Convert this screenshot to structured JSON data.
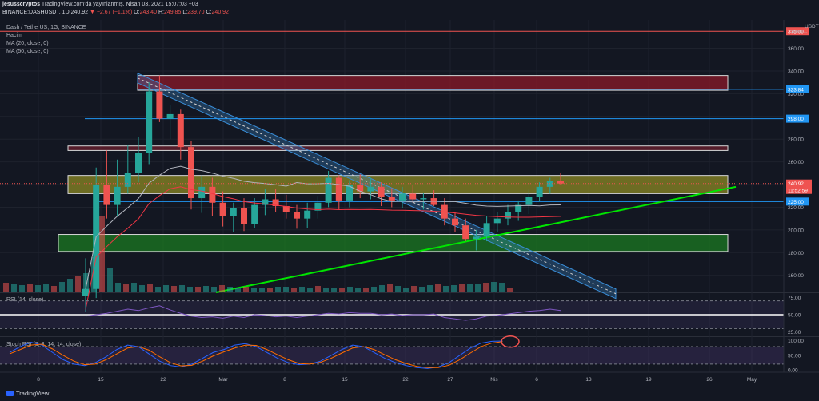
{
  "header": {
    "user": "jesusscryptos",
    "publish_text": "TradingView.com'da yayınlanmış, Nisan 03, 2021 15:07:03 +03",
    "symbol": "BINANCE:DASHUSDT, 1D",
    "last": "240.92",
    "change": "▼ −2.67 (−1.1%)",
    "ohlc": {
      "o_label": "O:",
      "o": "243.40",
      "h_label": "H:",
      "h": "249.85",
      "l_label": "L:",
      "l": "239.70",
      "c_label": "C:",
      "c": "240.92"
    },
    "volume_label": "Hacim"
  },
  "chart_data": [
    {
      "type": "line",
      "title": "Dash / TetherUS, 1G, BINANCE",
      "currency": "USDT",
      "price_scale_note": "Sabitle...",
      "indicators": [
        "MA (20, close, 0)",
        "MA (50, close, 0)"
      ],
      "y_ticks": [
        "360.00",
        "340.00",
        "320.00",
        "300.00",
        "280.00",
        "260.00",
        "240.00",
        "220.00",
        "200.00",
        "180.00",
        "160.00"
      ],
      "ylim": [
        145,
        385
      ],
      "x_ticks": [
        "8",
        "15",
        "22",
        "Mar",
        "8",
        "15",
        "22",
        "27",
        "Nis",
        "6",
        "13",
        "19",
        "26",
        "May"
      ],
      "candles": [
        [
          142,
          175,
          128,
          148
        ],
        [
          148,
          255,
          140,
          240
        ],
        [
          240,
          270,
          210,
          222
        ],
        [
          222,
          262,
          212,
          238
        ],
        [
          238,
          275,
          232,
          250
        ],
        [
          250,
          282,
          242,
          268
        ],
        [
          268,
          330,
          258,
          322
        ],
        [
          322,
          336,
          295,
          298
        ],
        [
          298,
          310,
          280,
          302
        ],
        [
          302,
          306,
          262,
          273
        ],
        [
          273,
          278,
          218,
          228
        ],
        [
          228,
          248,
          215,
          238
        ],
        [
          238,
          246,
          212,
          224
        ],
        [
          224,
          234,
          203,
          212
        ],
        [
          212,
          224,
          198,
          219
        ],
        [
          219,
          228,
          199,
          205
        ],
        [
          205,
          228,
          202,
          222
        ],
        [
          222,
          236,
          213,
          227
        ],
        [
          227,
          236,
          216,
          221
        ],
        [
          221,
          231,
          210,
          216
        ],
        [
          216,
          222,
          201,
          210
        ],
        [
          210,
          224,
          202,
          217
        ],
        [
          217,
          230,
          210,
          224
        ],
        [
          224,
          252,
          220,
          246
        ],
        [
          246,
          248,
          218,
          226
        ],
        [
          226,
          244,
          220,
          240
        ],
        [
          240,
          249,
          228,
          234
        ],
        [
          234,
          246,
          227,
          238
        ],
        [
          238,
          242,
          221,
          229
        ],
        [
          229,
          237,
          220,
          226
        ],
        [
          226,
          238,
          219,
          232
        ],
        [
          232,
          240,
          224,
          227
        ],
        [
          227,
          233,
          218,
          228
        ],
        [
          228,
          235,
          221,
          222
        ],
        [
          222,
          228,
          204,
          210
        ],
        [
          210,
          216,
          198,
          204
        ],
        [
          204,
          210,
          190,
          192
        ],
        [
          192,
          200,
          182,
          194
        ],
        [
          194,
          212,
          190,
          206
        ],
        [
          206,
          216,
          198,
          210
        ],
        [
          210,
          222,
          204,
          216
        ],
        [
          216,
          226,
          208,
          222
        ],
        [
          222,
          236,
          214,
          229
        ],
        [
          229,
          242,
          225,
          238
        ],
        [
          238,
          246,
          232,
          243
        ],
        [
          243.4,
          249.85,
          239.7,
          240.92
        ]
      ],
      "volume": [
        12,
        10,
        9,
        11,
        9,
        10,
        8,
        13,
        17,
        21,
        24,
        44,
        95,
        30,
        12,
        11,
        12,
        9,
        11,
        7,
        9,
        8,
        9,
        7,
        7,
        8,
        7,
        9,
        7,
        6,
        7,
        6,
        5,
        6,
        7,
        7,
        6,
        7,
        6,
        8,
        6,
        5,
        6,
        7,
        5,
        6,
        7,
        9,
        11,
        8,
        6,
        8,
        7,
        9,
        10,
        8,
        9,
        10,
        11,
        10,
        12,
        13,
        12,
        5
      ],
      "levels": [
        {
          "price": "375.00",
          "color": "#ef5350"
        },
        {
          "price": "323.84",
          "color": "#2196f3"
        },
        {
          "price": "298.00",
          "color": "#2196f3"
        },
        {
          "price": "225.00",
          "color": "#2196f3"
        }
      ],
      "last_price_label": "240.92",
      "countdown": "11:52:59",
      "zones": [
        {
          "name": "resistance-top",
          "from": 323,
          "to": 336,
          "color": "#8b1a2a"
        },
        {
          "name": "resistance-mid",
          "from": 270,
          "to": 274,
          "color": "#6b1f2e"
        },
        {
          "name": "current-zone",
          "from": 232,
          "to": 248,
          "color": "#8c8a24"
        },
        {
          "name": "support-zone",
          "from": 181,
          "to": 196,
          "color": "#1b7a21"
        }
      ]
    },
    {
      "type": "line",
      "title": "RSI (14, close)",
      "y_ticks": [
        "75.00",
        "50.00",
        "25.00"
      ],
      "ylim": [
        20,
        80
      ],
      "values": [
        48,
        50,
        52,
        55,
        58,
        56,
        60,
        63,
        57,
        52,
        48,
        46,
        47,
        45,
        48,
        46,
        50,
        49,
        47,
        48,
        46,
        48,
        50,
        52,
        51,
        53,
        52,
        52,
        50,
        51,
        49,
        50,
        50,
        51,
        46,
        44,
        42,
        44,
        48,
        49,
        51,
        53,
        55,
        56,
        58,
        56
      ]
    },
    {
      "type": "line",
      "title": "Stoch RSI (3, 3, 14, 14, close)",
      "y_ticks": [
        "100.00",
        "50.00",
        "0.00"
      ],
      "ylim": [
        -5,
        110
      ],
      "series": [
        {
          "values": [
            60,
            80,
            95,
            85,
            60,
            35,
            20,
            15,
            25,
            45,
            70,
            85,
            80,
            55,
            30,
            15,
            10,
            20,
            40,
            60,
            70,
            85,
            90,
            80,
            60,
            40,
            25,
            18,
            20,
            30,
            50,
            70,
            85,
            80,
            60,
            40,
            25,
            15,
            8,
            5,
            10,
            25,
            50,
            75,
            92,
            98,
            99
          ]
        },
        {
          "values": [
            55,
            70,
            85,
            88,
            72,
            50,
            30,
            18,
            20,
            35,
            55,
            75,
            80,
            68,
            45,
            25,
            14,
            16,
            30,
            48,
            62,
            75,
            85,
            84,
            70,
            52,
            35,
            22,
            20,
            26,
            40,
            58,
            75,
            80,
            70,
            52,
            35,
            22,
            12,
            8,
            8,
            16,
            35,
            58,
            80,
            92,
            97
          ]
        }
      ]
    }
  ],
  "footer": {
    "brand": "TradingView"
  },
  "colors": {
    "up": "#26a69a",
    "down": "#ef5350",
    "ma20": "#b2b5be",
    "ma50": "#f23645",
    "trend": "#00e600",
    "channel": "#3a8ed8"
  }
}
